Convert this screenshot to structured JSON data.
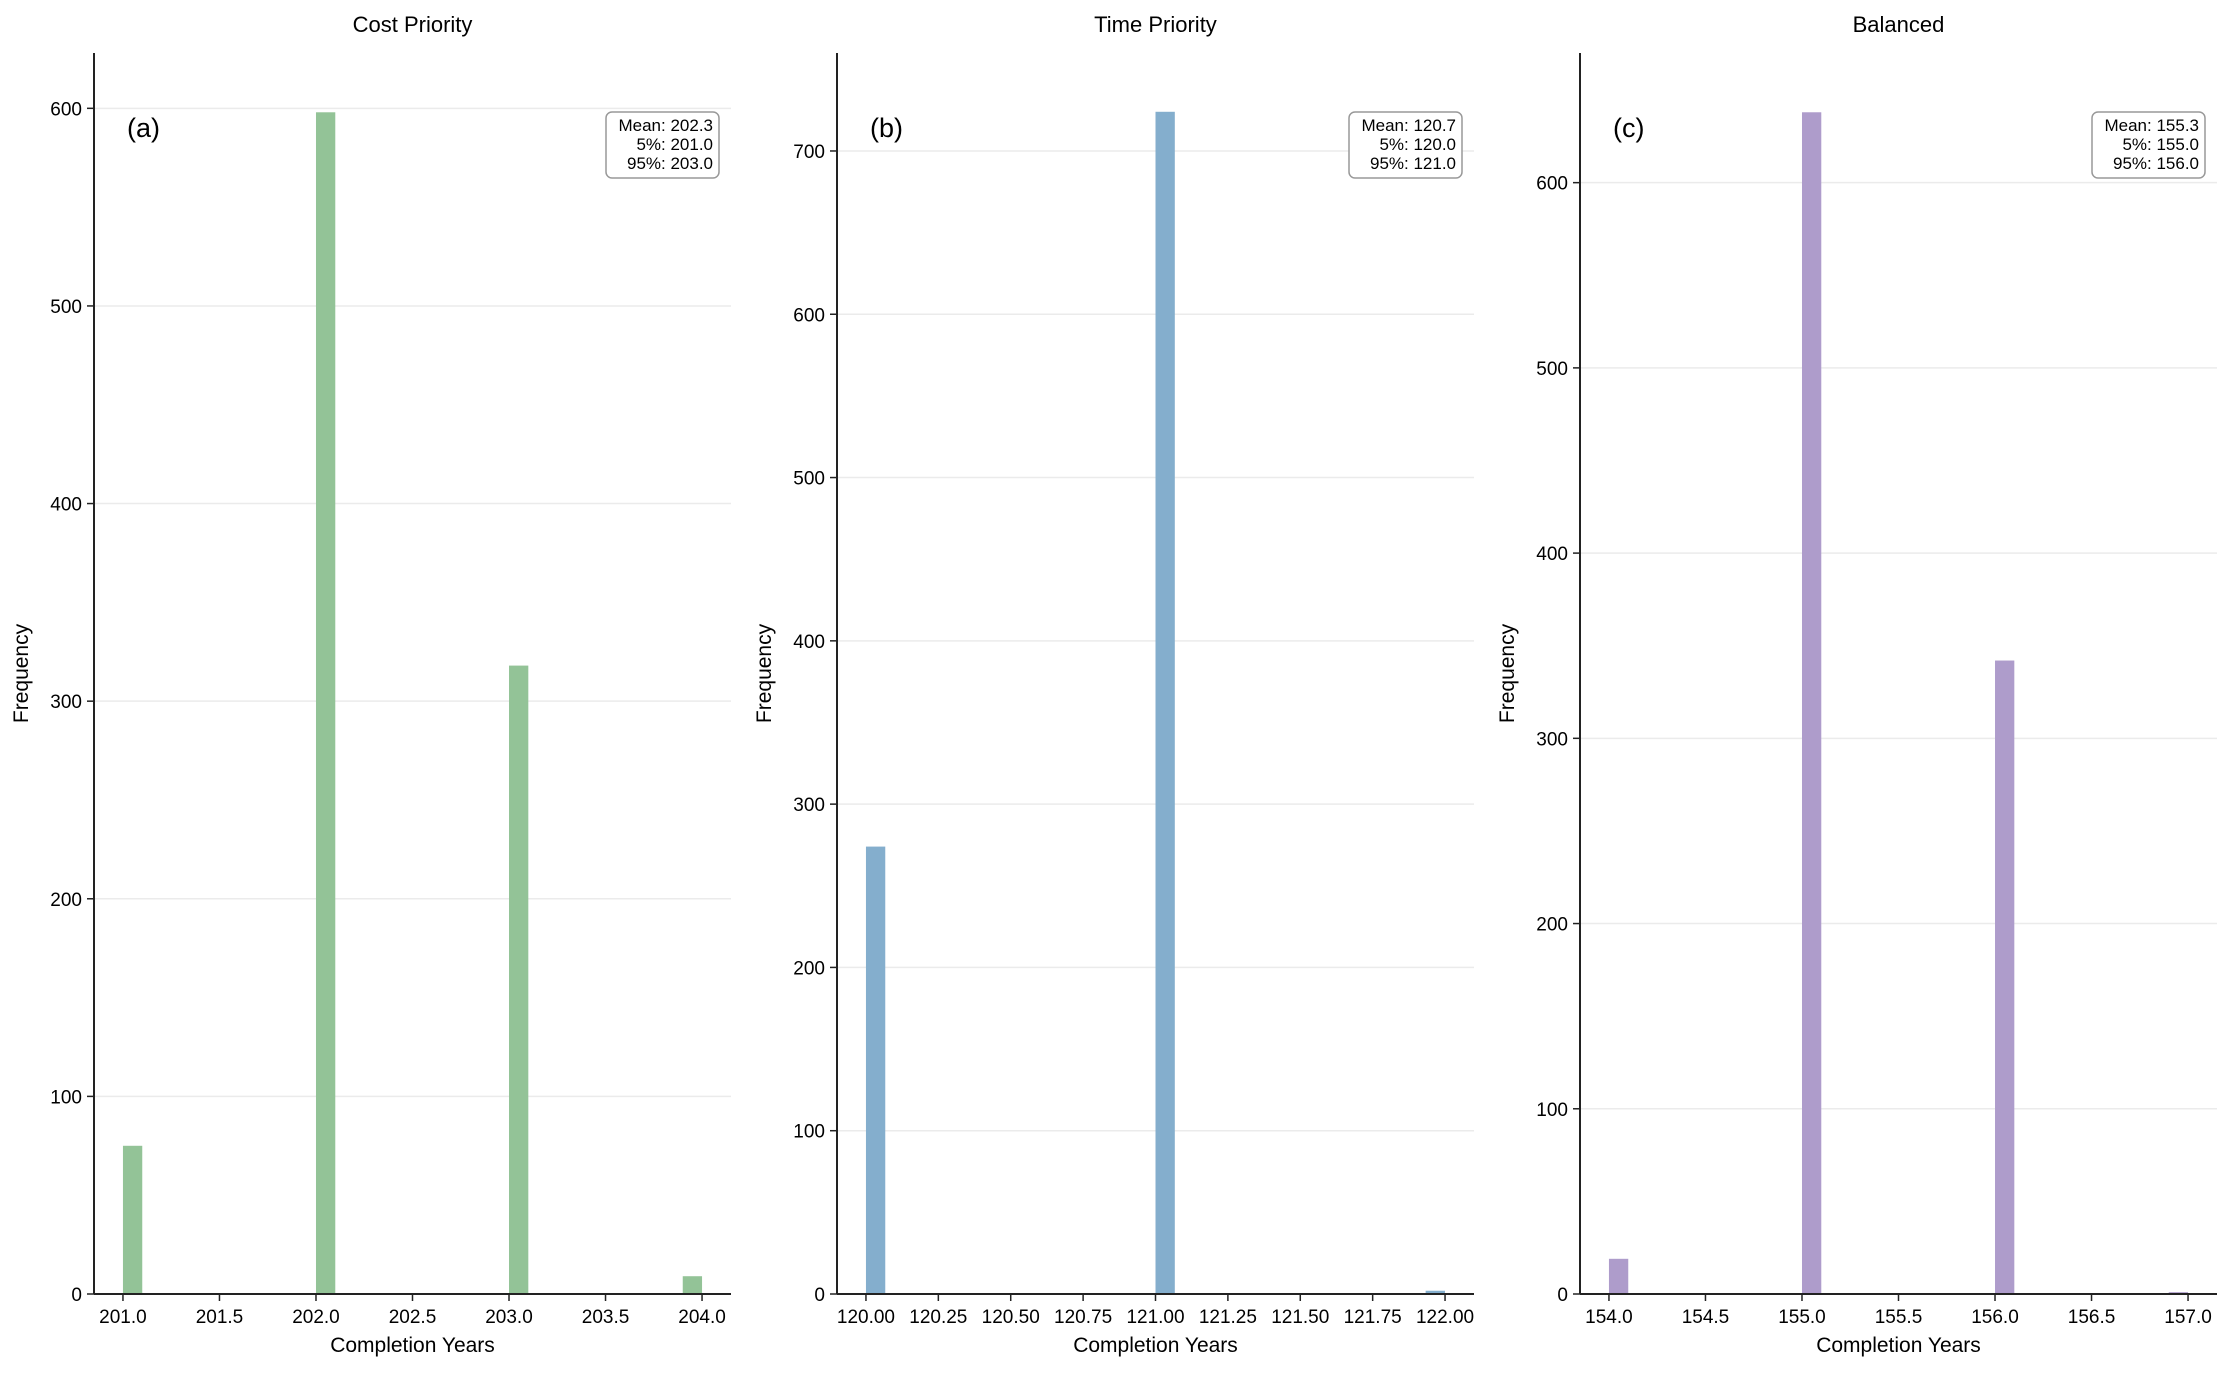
{
  "chart_data": [
    {
      "type": "bar",
      "title": "Cost Priority",
      "panel_label": "(a)",
      "xlabel": "Completion Years",
      "ylabel": "Frequency",
      "color": "#93c397",
      "bin_width": 0.1,
      "bins": [
        201.0,
        202.0,
        203.0,
        203.9
      ],
      "values": [
        75,
        598,
        318,
        9
      ],
      "xlim": [
        200.85,
        204.15
      ],
      "ylim": [
        0,
        628
      ],
      "xticks": [
        "201.0",
        "201.5",
        "202.0",
        "202.5",
        "203.0",
        "203.5",
        "204.0"
      ],
      "yticks": [
        "0",
        "100",
        "200",
        "300",
        "400",
        "500",
        "600"
      ],
      "stats": [
        "Mean: 202.3",
        "5%: 201.0",
        "95%: 203.0"
      ],
      "grid": "y"
    },
    {
      "type": "bar",
      "title": "Time Priority",
      "panel_label": "(b)",
      "xlabel": "Completion Years",
      "ylabel": "Frequency",
      "color": "#84aecd",
      "bin_width": 0.0667,
      "bins": [
        120.0,
        121.0,
        121.933
      ],
      "values": [
        274,
        724,
        2
      ],
      "xlim": [
        119.9,
        122.1
      ],
      "ylim": [
        0,
        760
      ],
      "xticks": [
        "120.00",
        "120.25",
        "120.50",
        "120.75",
        "121.00",
        "121.25",
        "121.50",
        "121.75",
        "122.00"
      ],
      "yticks": [
        "0",
        "100",
        "200",
        "300",
        "400",
        "500",
        "600",
        "700"
      ],
      "stats": [
        "Mean: 120.7",
        "5%: 120.0",
        "95%: 121.0"
      ],
      "grid": "y"
    },
    {
      "type": "bar",
      "title": "Balanced",
      "panel_label": "(c)",
      "xlabel": "Completion Years",
      "ylabel": "Frequency",
      "color": "#ae9ccb",
      "bin_width": 0.1,
      "bins": [
        154.0,
        155.0,
        156.0,
        156.9
      ],
      "values": [
        19,
        638,
        342,
        1
      ],
      "xlim": [
        153.85,
        157.15
      ],
      "ylim": [
        0,
        670
      ],
      "xticks": [
        "154.0",
        "154.5",
        "155.0",
        "155.5",
        "156.0",
        "156.5",
        "157.0"
      ],
      "yticks": [
        "0",
        "100",
        "200",
        "300",
        "400",
        "500",
        "600"
      ],
      "stats": [
        "Mean: 155.3",
        "5%: 155.0",
        "95%: 156.0"
      ],
      "grid": "y"
    }
  ]
}
